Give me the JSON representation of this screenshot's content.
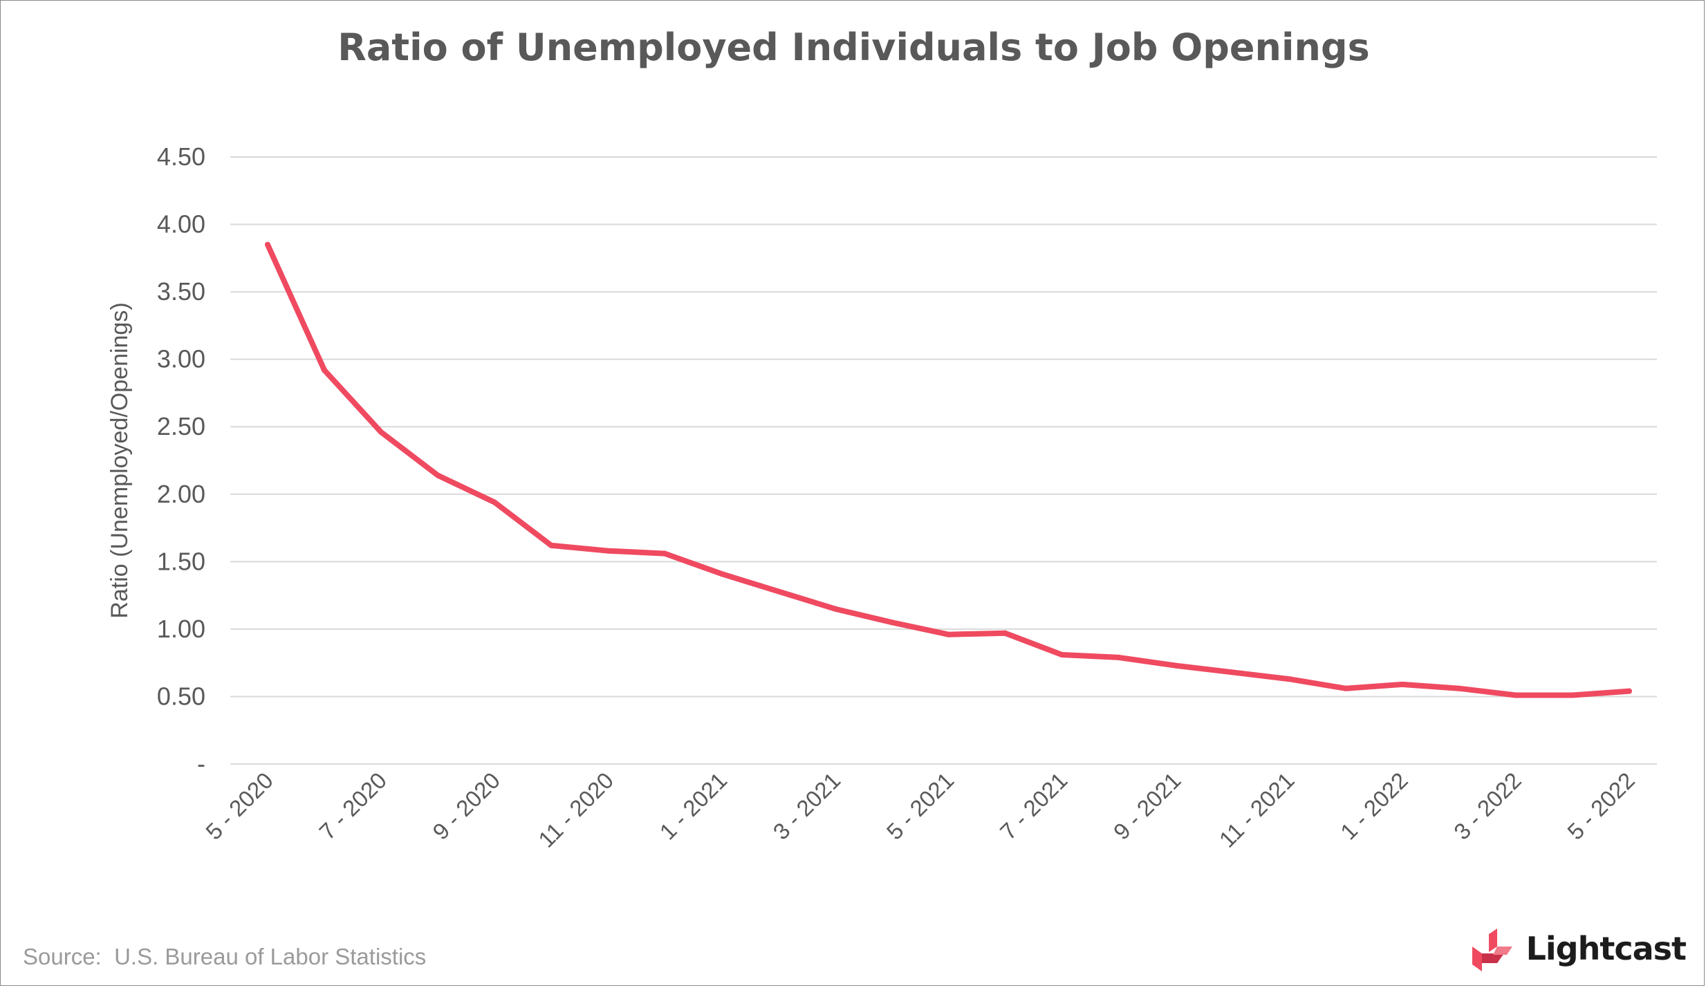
{
  "title": "Ratio of Unemployed Individuals to Job Openings",
  "source": "Source:  U.S. Bureau of Labor Statistics",
  "brand": {
    "name": "Lightcast",
    "logo_icon": "lightcast-logo-icon",
    "color": "#ef4a60"
  },
  "colors": {
    "line": "#ef4a60",
    "grid": "#d9d9d9",
    "text": "#595959"
  },
  "chart_data": {
    "type": "line",
    "title": "Ratio of Unemployed Individuals to Job Openings",
    "xlabel": "",
    "ylabel": "Ratio (Unemployed/Openings)",
    "ylim": [
      0,
      4.5
    ],
    "yticks": [
      {
        "value": 0,
        "label": "-"
      },
      {
        "value": 0.5,
        "label": "0.50"
      },
      {
        "value": 1.0,
        "label": "1.00"
      },
      {
        "value": 1.5,
        "label": "1.50"
      },
      {
        "value": 2.0,
        "label": "2.00"
      },
      {
        "value": 2.5,
        "label": "2.50"
      },
      {
        "value": 3.0,
        "label": "3.00"
      },
      {
        "value": 3.5,
        "label": "3.50"
      },
      {
        "value": 4.0,
        "label": "4.00"
      },
      {
        "value": 4.5,
        "label": "4.50"
      }
    ],
    "x": [
      "5 - 2020",
      "6 - 2020",
      "7 - 2020",
      "8 - 2020",
      "9 - 2020",
      "10 - 2020",
      "11 - 2020",
      "12 - 2020",
      "1 - 2021",
      "2 - 2021",
      "3 - 2021",
      "4 - 2021",
      "5 - 2021",
      "6 - 2021",
      "7 - 2021",
      "8 - 2021",
      "9 - 2021",
      "10 - 2021",
      "11 - 2021",
      "12 - 2021",
      "1 - 2022",
      "2 - 2022",
      "3 - 2022",
      "4 - 2022",
      "5 - 2022"
    ],
    "xtick_labels": [
      "5 - 2020",
      "7 - 2020",
      "9 - 2020",
      "11 - 2020",
      "1 - 2021",
      "3 - 2021",
      "5 - 2021",
      "7 - 2021",
      "9 - 2021",
      "11 - 2021",
      "1 - 2022",
      "3 - 2022",
      "5 - 2022"
    ],
    "series": [
      {
        "values": [
          3.85,
          2.92,
          2.46,
          2.14,
          1.94,
          1.62,
          1.58,
          1.56,
          1.41,
          1.28,
          1.15,
          1.05,
          0.96,
          0.97,
          0.81,
          0.79,
          0.73,
          0.68,
          0.63,
          0.56,
          0.59,
          0.56,
          0.51,
          0.51,
          0.54
        ]
      }
    ],
    "grid": true,
    "legend": "none"
  }
}
